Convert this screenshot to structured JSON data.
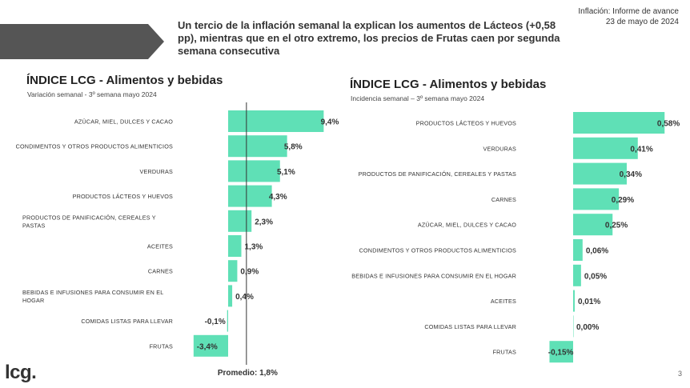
{
  "header": {
    "headline": "Un tercio de la inflación semanal la explican los aumentos de Lácteos (+0,58 pp), mientras que en el otro extremo, los precios de Frutas caen por segunda semana consecutiva",
    "report_line1": "Inflación: Informe de avance",
    "report_line2": "23 de mayo de 2024"
  },
  "footer": {
    "logo": "lcg.",
    "page": "3"
  },
  "colors": {
    "bar": "#5fe0b6",
    "ribbon": "#555555",
    "average_line": "#333333"
  },
  "chart_data": [
    {
      "type": "bar",
      "orientation": "horizontal",
      "title": "ÍNDICE LCG - Alimentos y bebidas",
      "subtitle": "Variación semanal - 3º semana mayo 2024",
      "categories": [
        "AZÚCAR, MIEL, DULCES Y CACAO",
        "CONDIMENTOS Y OTROS PRODUCTOS ALIMENTICIOS",
        "VERDURAS",
        "PRODUCTOS LÁCTEOS Y HUEVOS",
        "PRODUCTOS DE PANIFICACIÓN, CEREALES Y PASTAS",
        "ACEITES",
        "CARNES",
        "BEBIDAS E INFUSIONES PARA CONSUMIR EN EL HOGAR",
        "COMIDAS LISTAS PARA LLEVAR",
        "FRUTAS"
      ],
      "values": [
        9.4,
        5.8,
        5.1,
        4.3,
        2.3,
        1.3,
        0.9,
        0.4,
        -0.1,
        -3.4
      ],
      "value_labels": [
        "9,4%",
        "5,8%",
        "5,1%",
        "4,3%",
        "2,3%",
        "1,3%",
        "0,9%",
        "0,4%",
        "-0,1%",
        "-3,4%"
      ],
      "average": 1.8,
      "average_label": "Promedio: 1,8%",
      "xlim": [
        -3.4,
        9.4
      ]
    },
    {
      "type": "bar",
      "orientation": "horizontal",
      "title": "ÍNDICE LCG - Alimentos y bebidas",
      "subtitle": "Incidencia semanal – 3º semana mayo 2024",
      "categories": [
        "PRODUCTOS LÁCTEOS Y HUEVOS",
        "VERDURAS",
        "PRODUCTOS DE PANIFICACIÓN, CEREALES Y PASTAS",
        "CARNES",
        "AZÚCAR, MIEL, DULCES Y CACAO",
        "CONDIMENTOS Y OTROS PRODUCTOS ALIMENTICIOS",
        "BEBIDAS E INFUSIONES PARA CONSUMIR EN EL HOGAR",
        "ACEITES",
        "COMIDAS LISTAS PARA LLEVAR",
        "FRUTAS"
      ],
      "values": [
        0.58,
        0.41,
        0.34,
        0.29,
        0.25,
        0.06,
        0.05,
        0.01,
        0.0,
        -0.15
      ],
      "value_labels": [
        "0,58%",
        "0,41%",
        "0,34%",
        "0,29%",
        "0,25%",
        "0,06%",
        "0,05%",
        "0,01%",
        "0,00%",
        "-0,15%"
      ],
      "xlim": [
        -0.15,
        0.58
      ]
    }
  ]
}
